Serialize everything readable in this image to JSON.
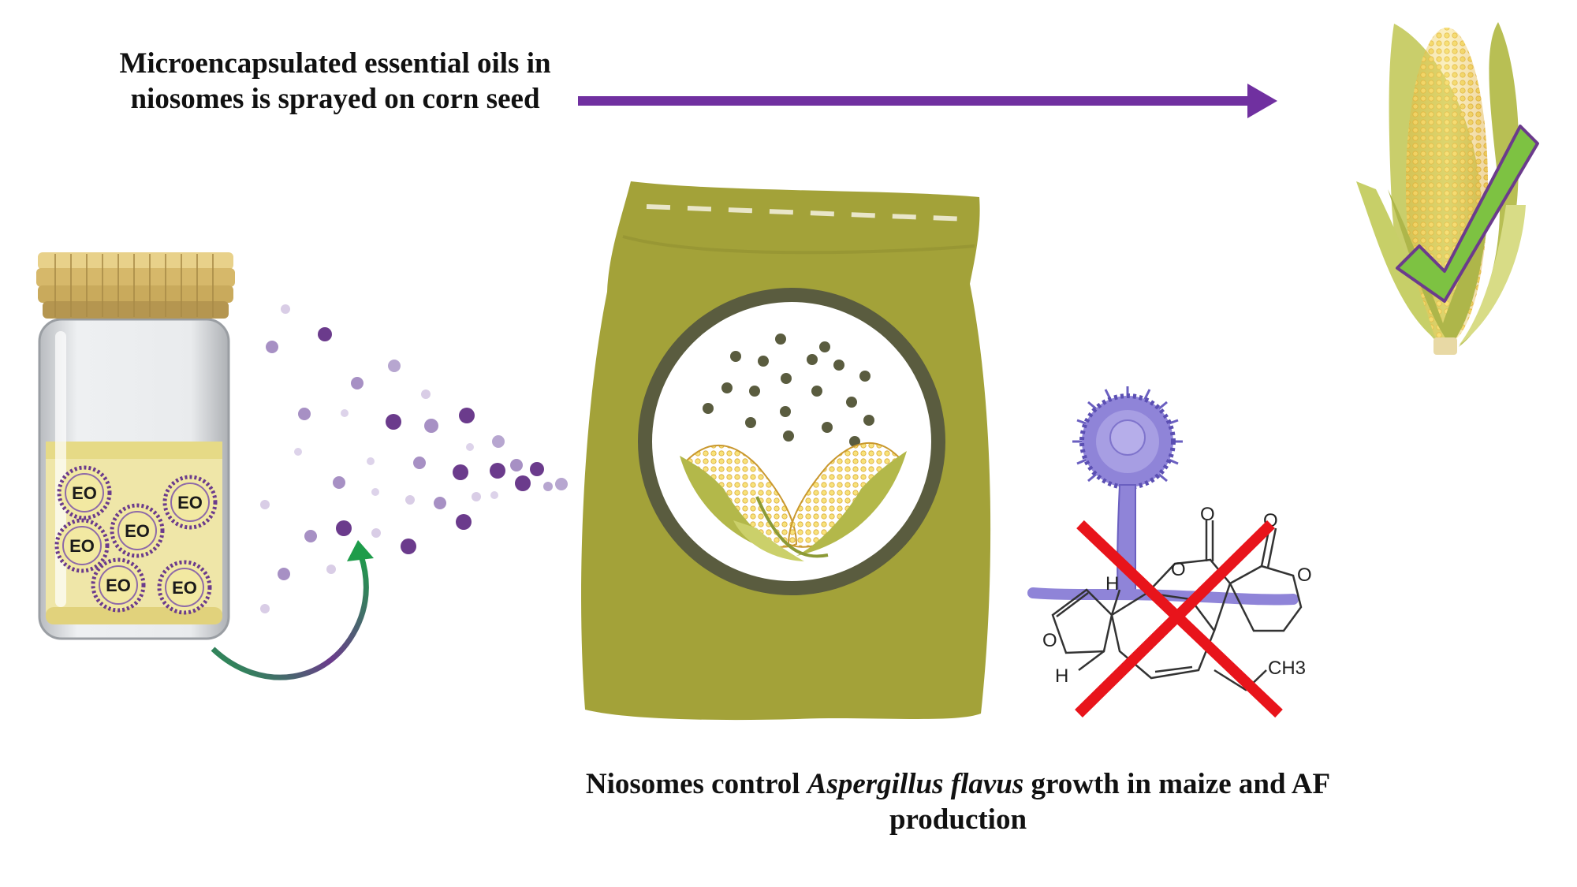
{
  "captions": {
    "top": "Microencapsulated essential oils in niosomes is sprayed on corn seed",
    "bottom_prefix": "Niosomes control ",
    "bottom_italic": "Aspergillus flavus",
    "bottom_suffix": " growth in maize and AF production"
  },
  "vesicle_label": "EO",
  "chem_labels": {
    "carbonyl_o1": "O",
    "carbonyl_o2": "O",
    "ring_o1": "O",
    "ring_o2": "O",
    "ring_o3": "O",
    "h_top": "H",
    "h_bottom": "H",
    "methyl": "CH3"
  },
  "colors": {
    "arrow_purple": "#7030a0",
    "bag_olive": "#a3a239",
    "bag_ring": "#5a5c3f",
    "check_green": "#7dc242",
    "cross_red": "#e8141b",
    "niosome_purple": "#6b3b8c",
    "curve_green": "#1e9c4a"
  }
}
